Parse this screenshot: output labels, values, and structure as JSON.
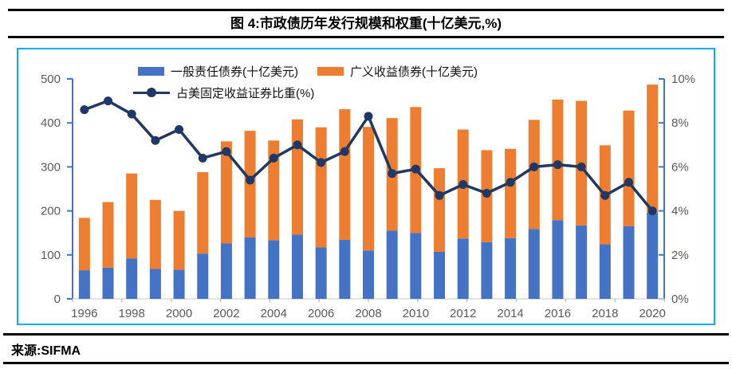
{
  "header": {
    "title": "图 4:市政债历年发行规模和权重(十亿美元,%)"
  },
  "footer": {
    "source": "来源:SIFMA"
  },
  "legend": {
    "go": {
      "label": "一般责任债券(十亿美元)",
      "color": "#4472C4",
      "marker": "bar-swatch"
    },
    "revenue": {
      "label": "广义收益债券(十亿美元)",
      "color": "#ED7D31",
      "marker": "bar-swatch"
    },
    "ratio": {
      "label": "占美固定收益证券比重(%)",
      "color": "#1F3864",
      "marker": "line-with-dot"
    }
  },
  "chart_data": {
    "type": "bar",
    "subtype": "stacked-bars-with-line-overlay",
    "title": "图 4:市政债历年发行规模和权重(十亿美元,%)",
    "categories": [
      1996,
      1997,
      1998,
      1999,
      2000,
      2001,
      2002,
      2003,
      2004,
      2005,
      2006,
      2007,
      2008,
      2009,
      2010,
      2011,
      2012,
      2013,
      2014,
      2015,
      2016,
      2017,
      2018,
      2019,
      2020
    ],
    "series": [
      {
        "name": "一般责任债券(十亿美元)",
        "type": "bar",
        "stack": "issuance",
        "axis": "left",
        "color": "#4472C4",
        "values": [
          65,
          71,
          92,
          68,
          66,
          103,
          126,
          140,
          133,
          146,
          117,
          134,
          110,
          155,
          150,
          107,
          137,
          129,
          138,
          159,
          179,
          167,
          124,
          165,
          196
        ]
      },
      {
        "name": "广义收益债券(十亿美元)",
        "type": "bar",
        "stack": "issuance",
        "axis": "left",
        "color": "#ED7D31",
        "values": [
          119,
          149,
          193,
          157,
          134,
          185,
          232,
          242,
          227,
          262,
          273,
          297,
          281,
          256,
          286,
          190,
          248,
          209,
          203,
          248,
          274,
          283,
          225,
          263,
          291
        ]
      },
      {
        "name": "占美固定收益证券比重(%)",
        "type": "line",
        "axis": "right",
        "color": "#1F3864",
        "marker": "circle",
        "values": [
          8.6,
          9.0,
          8.4,
          7.2,
          7.7,
          6.4,
          6.7,
          5.4,
          6.4,
          7.0,
          6.2,
          6.7,
          8.3,
          5.7,
          5.9,
          4.7,
          5.2,
          4.8,
          5.3,
          6.0,
          6.1,
          6.0,
          4.7,
          5.3,
          4.0
        ]
      }
    ],
    "stacked_totals": [
      184,
      220,
      285,
      225,
      200,
      288,
      358,
      382,
      360,
      408,
      390,
      431,
      391,
      411,
      436,
      297,
      385,
      338,
      341,
      407,
      453,
      450,
      349,
      428,
      487
    ],
    "left_axis": {
      "min": 0,
      "max": 500,
      "step": 100,
      "suffix": ""
    },
    "right_axis": {
      "min": 0,
      "max": 10,
      "step": 2,
      "suffix": "%"
    },
    "x_tick_labels": [
      "1996",
      "1998",
      "2000",
      "2002",
      "2004",
      "2006",
      "2008",
      "2010",
      "2012",
      "2014",
      "2016",
      "2018",
      "2020"
    ],
    "grid": "off",
    "legend_position": "top-inside",
    "colors": {
      "go_bar": "#4472C4",
      "revenue_bar": "#ED7D31",
      "ratio_line": "#1F3864",
      "axis_line": "#4472C4",
      "axis_text": "#595959",
      "x_axis_line": "#D9D9D9",
      "x_tick": "#BFBFBF",
      "box_border": "#00B0F0",
      "rule": "#000000"
    }
  }
}
